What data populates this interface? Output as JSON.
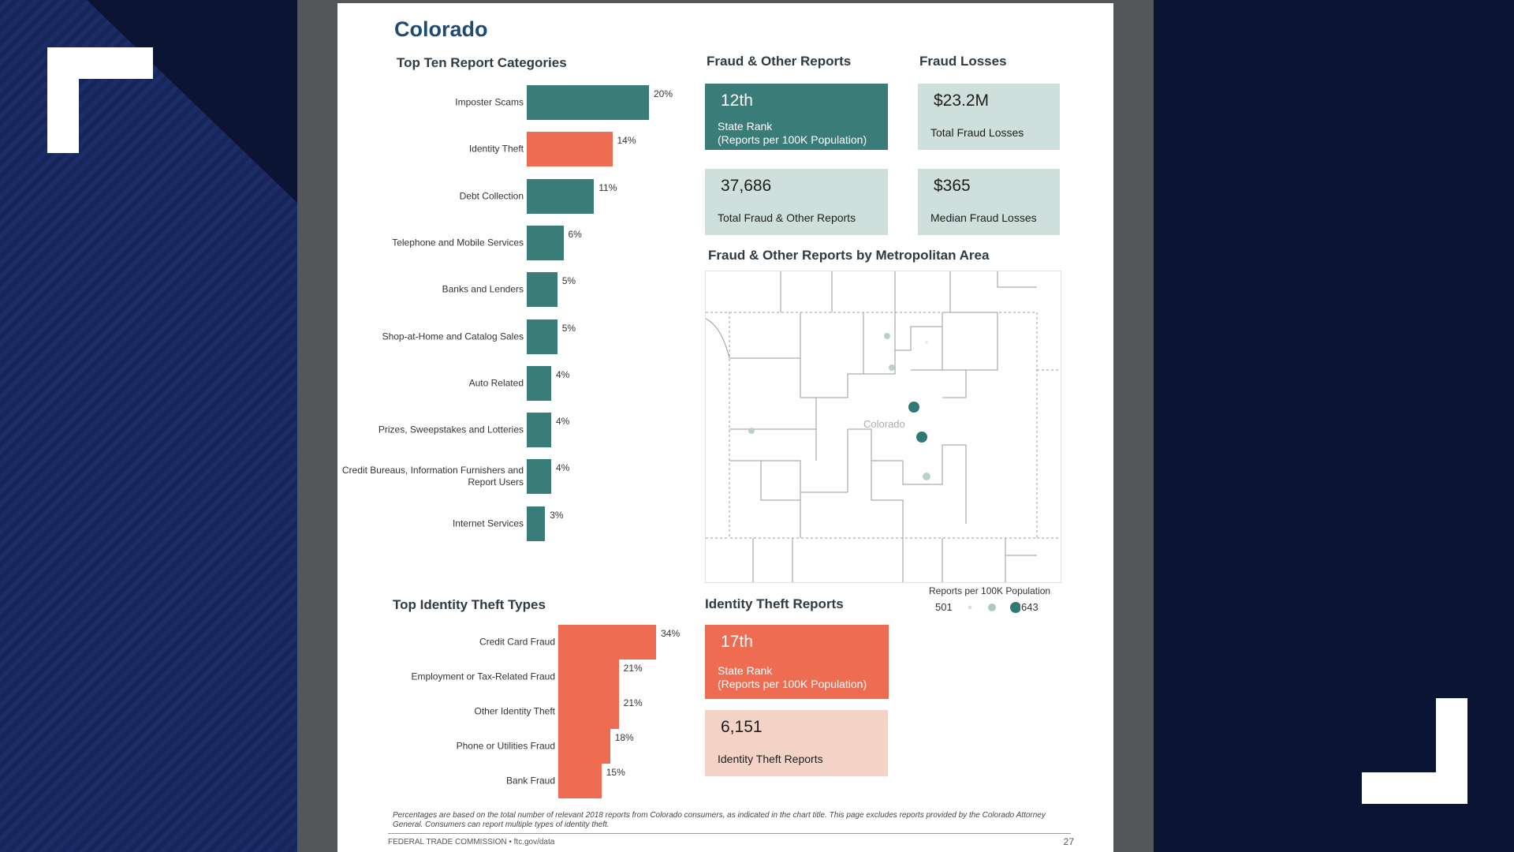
{
  "page": {
    "title": "Colorado",
    "top_ten_heading": "Top Ten Report Categories",
    "fraud_reports_heading": "Fraud & Other Reports",
    "fraud_losses_heading": "Fraud Losses",
    "metro_heading": "Fraud & Other Reports by Metropolitan Area",
    "identity_types_heading": "Top Identity Theft Types",
    "identity_reports_heading": "Identity Theft Reports"
  },
  "colors": {
    "teal": "#3a7d78",
    "orange": "#ee6c52",
    "light_teal": "#cfe0dc",
    "light_orange": "#f3d3c6",
    "title_blue": "#1e4a73"
  },
  "chart_data": [
    {
      "type": "bar",
      "orientation": "horizontal",
      "categories": [
        "Imposter Scams",
        "Identity Theft",
        "Debt Collection",
        "Telephone and Mobile Services",
        "Banks and Lenders",
        "Shop-at-Home and Catalog Sales",
        "Auto Related",
        "Prizes, Sweepstakes and Lotteries",
        "Credit Bureaus, Information Furnishers and Report Users",
        "Internet Services"
      ],
      "values": [
        20,
        14,
        11,
        6,
        5,
        5,
        4,
        4,
        4,
        3
      ],
      "value_labels": [
        "20%",
        "14%",
        "11%",
        "6%",
        "5%",
        "5%",
        "4%",
        "4%",
        "4%",
        "3%"
      ],
      "bar_colors": [
        "#3a7d78",
        "#ee6c52",
        "#3a7d78",
        "#3a7d78",
        "#3a7d78",
        "#3a7d78",
        "#3a7d78",
        "#3a7d78",
        "#3a7d78",
        "#3a7d78"
      ]
    },
    {
      "type": "bar",
      "orientation": "horizontal",
      "categories": [
        "Credit Card Fraud",
        "Employment or Tax-Related Fraud",
        "Other Identity Theft",
        "Phone or Utilities Fraud",
        "Bank Fraud"
      ],
      "values": [
        34,
        21,
        21,
        18,
        15
      ],
      "value_labels": [
        "34%",
        "21%",
        "21%",
        "18%",
        "15%"
      ],
      "bar_colors": [
        "#ee6c52",
        "#ee6c52",
        "#ee6c52",
        "#ee6c52",
        "#ee6c52"
      ]
    }
  ],
  "stats": {
    "state_rank": {
      "value": "12th",
      "label_1": "State Rank",
      "label_2": "(Reports per 100K Population)"
    },
    "total_losses": {
      "value": "$23.2M",
      "label": "Total Fraud Losses"
    },
    "total_reports": {
      "value": "37,686",
      "label": "Total Fraud & Other Reports"
    },
    "median_losses": {
      "value": "$365",
      "label": "Median Fraud Losses"
    },
    "id_rank": {
      "value": "17th",
      "label_1": "State Rank",
      "label_2": "(Reports per 100K Population)"
    },
    "id_reports": {
      "value": "6,151",
      "label": "Identity Theft Reports"
    }
  },
  "map": {
    "state_label": "Colorado",
    "legend_title": "Reports per 100K Population",
    "legend_low": "501",
    "legend_high": "643"
  },
  "footer": {
    "footnote": "Percentages are based on the total number of relevant 2018 reports from Colorado consumers, as indicated in the chart title. This page excludes reports provided by the Colorado Attorney General. Consumers can report multiple types of identity theft.",
    "source": "FEDERAL TRADE COMMISSION • ftc.gov/data",
    "page_number": "27"
  }
}
